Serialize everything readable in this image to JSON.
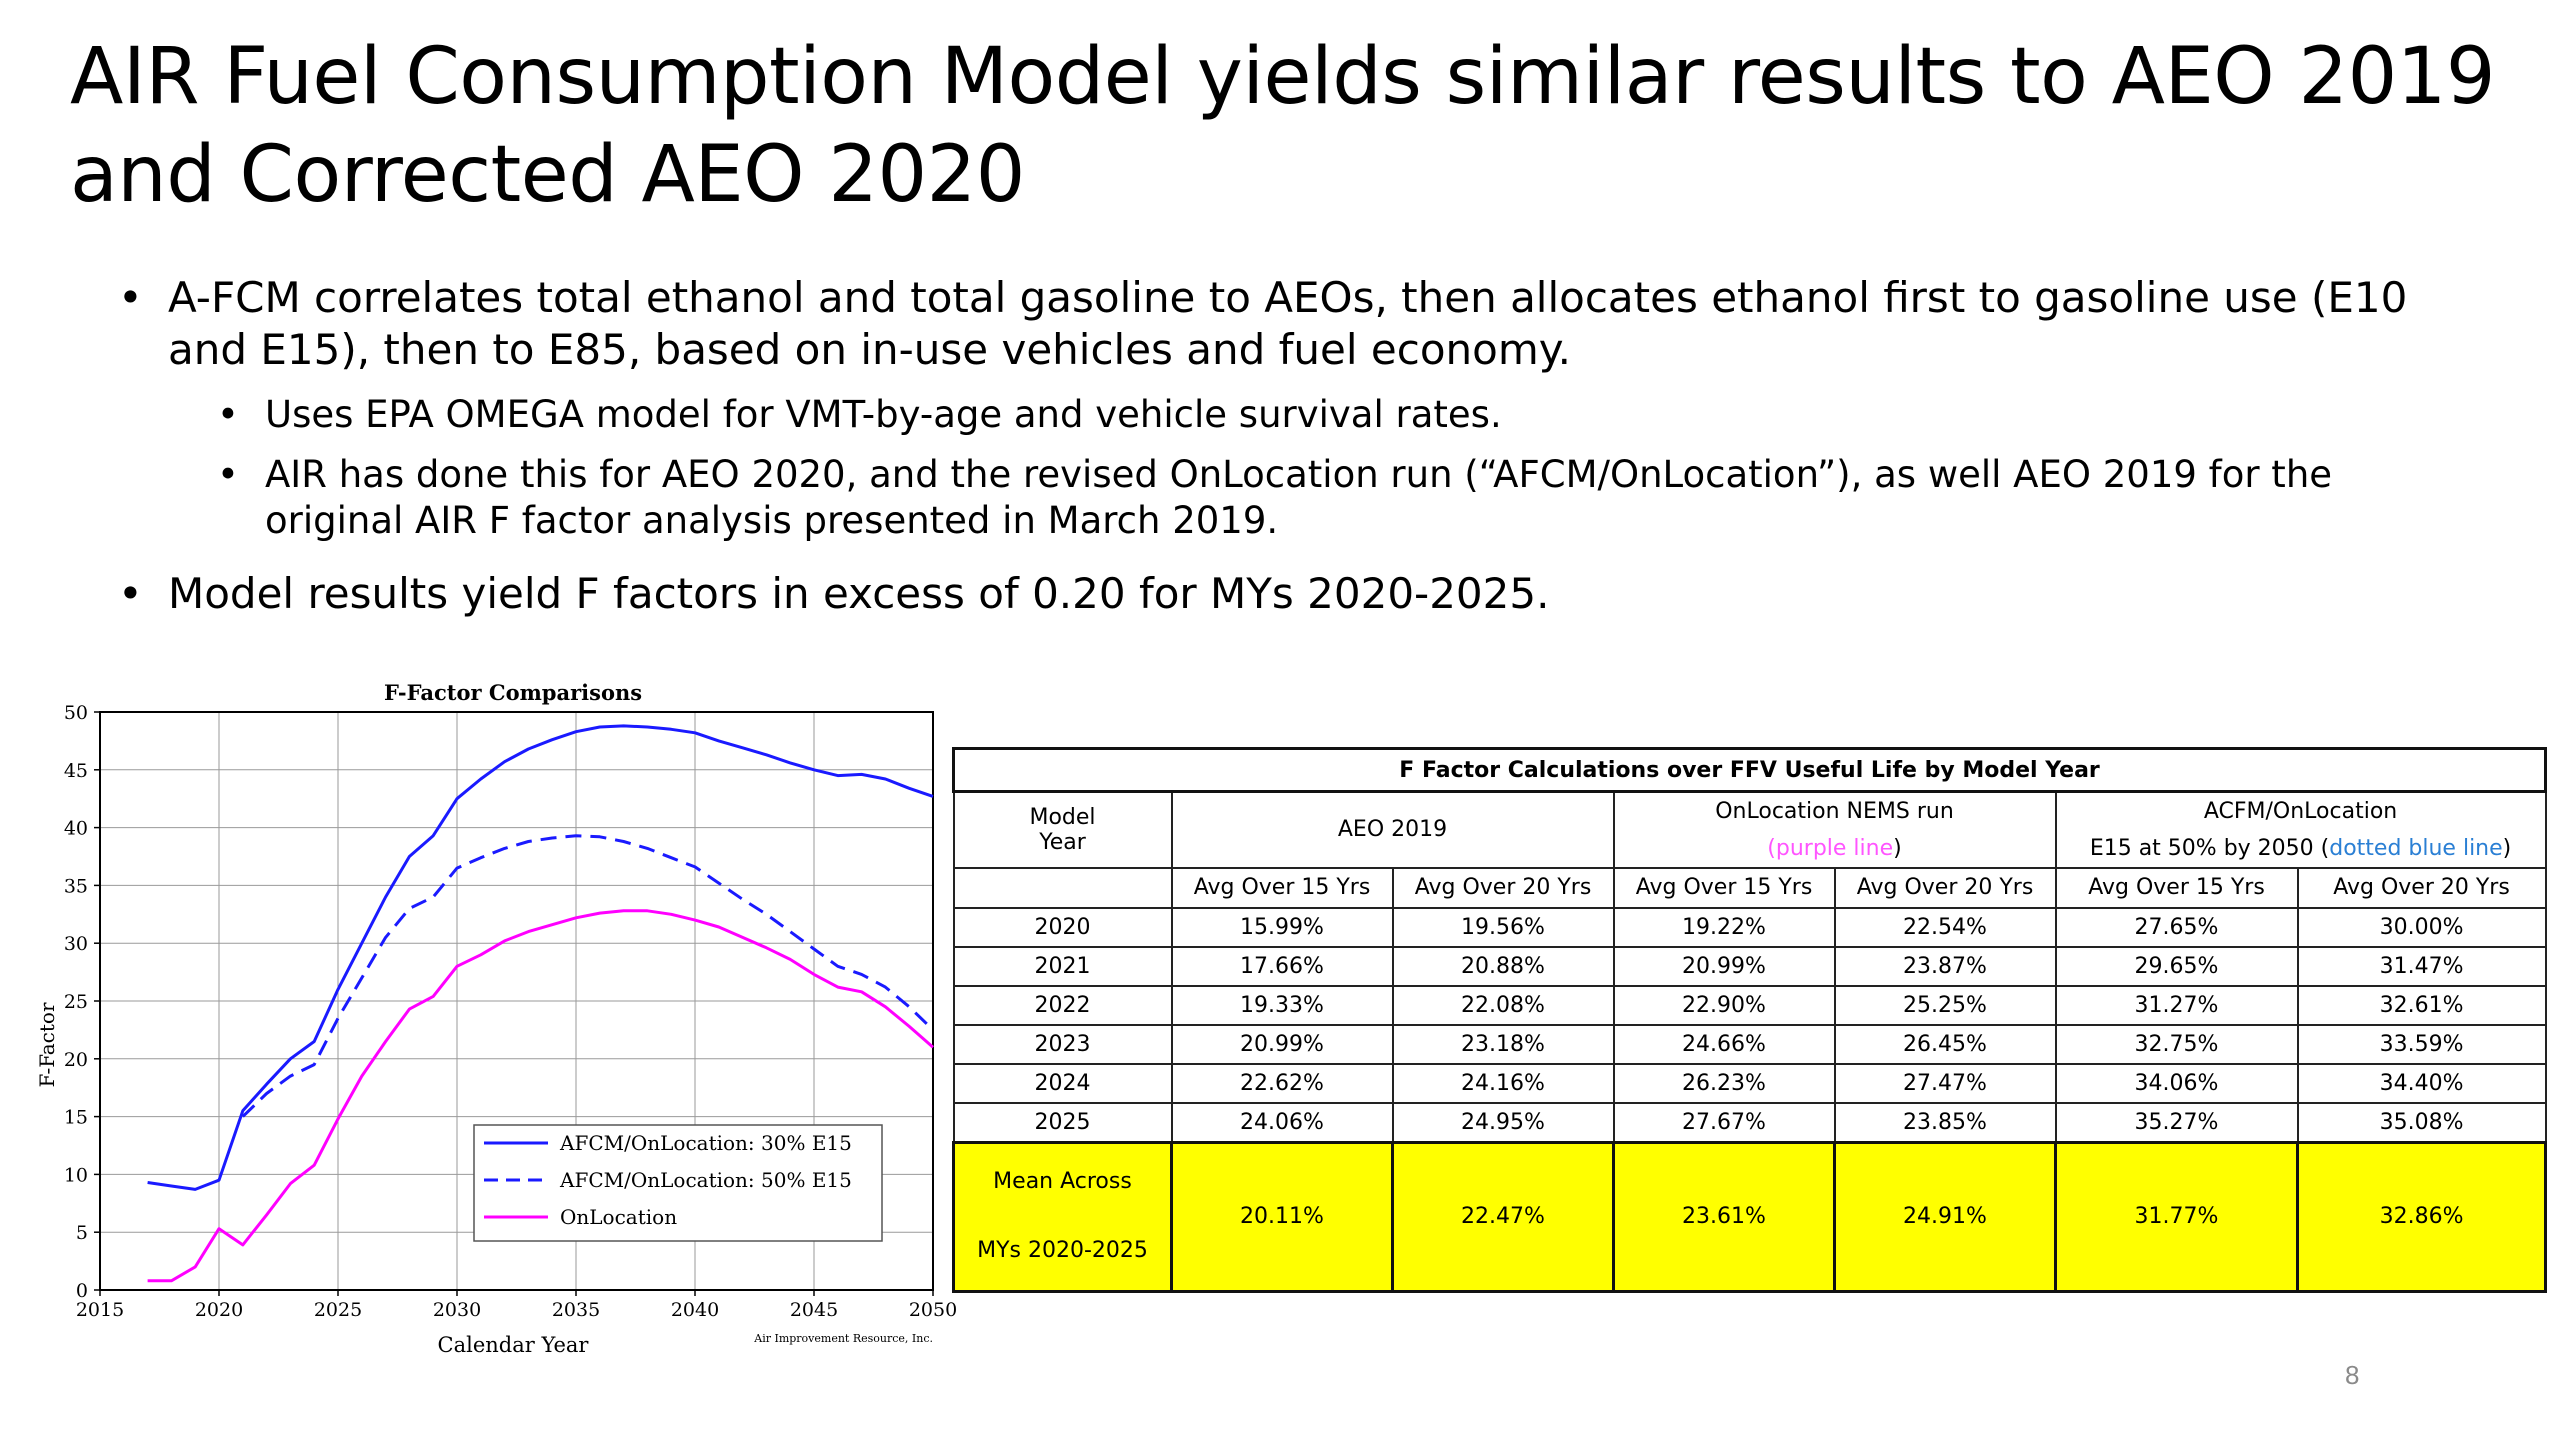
{
  "slide": {
    "title": "AIR Fuel Consumption Model yields similar results to AEO 2019 and Corrected AEO 2020",
    "page_number": "8"
  },
  "bullets": [
    {
      "level": 1,
      "text": "A-FCM correlates total ethanol and total gasoline to AEOs, then allocates ethanol first to gasoline use (E10 and E15), then to E85, based on in-use vehicles and fuel economy."
    },
    {
      "level": 2,
      "text": "Uses EPA OMEGA model for VMT-by-age and vehicle survival rates."
    },
    {
      "level": 2,
      "text": "AIR has done this for AEO 2020, and the revised OnLocation run (“AFCM/OnLocation”), as well AEO 2019 for the original AIR F factor analysis presented in March 2019."
    },
    {
      "level": 1,
      "text": "Model results yield F factors in excess of 0.20 for MYs 2020-2025."
    }
  ],
  "chart_data": {
    "type": "line",
    "title": "F-Factor Comparisons",
    "xlabel": "Calendar Year",
    "ylabel": "F-Factor",
    "xlim": [
      2015,
      2050
    ],
    "ylim": [
      0,
      50
    ],
    "x_ticks": [
      2015,
      2020,
      2025,
      2030,
      2035,
      2040,
      2045,
      2050
    ],
    "y_ticks": [
      0,
      5,
      10,
      15,
      20,
      25,
      30,
      35,
      40,
      45,
      50
    ],
    "grid": true,
    "legend_position": "lower-center",
    "credit": "Air Improvement Resource, Inc.",
    "series": [
      {
        "name": "AFCM/OnLocation: 30% E15",
        "style": "solid",
        "color": "#1a1aff",
        "x": [
          2017,
          2018,
          2019,
          2020,
          2021,
          2022,
          2023,
          2024,
          2025,
          2026,
          2027,
          2028,
          2029,
          2030,
          2031,
          2032,
          2033,
          2034,
          2035,
          2036,
          2037,
          2038,
          2039,
          2040,
          2041,
          2042,
          2043,
          2044,
          2045,
          2046,
          2047,
          2048,
          2049,
          2050
        ],
        "y": [
          9.3,
          9.0,
          8.7,
          9.5,
          15.5,
          17.8,
          20.0,
          21.5,
          26.0,
          30.0,
          34.0,
          37.5,
          39.3,
          42.5,
          44.2,
          45.7,
          46.8,
          47.6,
          48.3,
          48.7,
          48.8,
          48.7,
          48.5,
          48.2,
          47.5,
          46.9,
          46.3,
          45.6,
          45.0,
          44.5,
          44.6,
          44.2,
          43.4,
          42.7
        ]
      },
      {
        "name": "AFCM/OnLocation: 50% E15",
        "style": "dashed",
        "color": "#1a1aff",
        "x": [
          2021,
          2022,
          2023,
          2024,
          2025,
          2026,
          2027,
          2028,
          2029,
          2030,
          2031,
          2032,
          2033,
          2034,
          2035,
          2036,
          2037,
          2038,
          2039,
          2040,
          2041,
          2042,
          2043,
          2044,
          2045,
          2046,
          2047,
          2048,
          2049,
          2050
        ],
        "y": [
          15.0,
          17.0,
          18.5,
          19.5,
          23.5,
          27.0,
          30.5,
          33.0,
          34.0,
          36.5,
          37.4,
          38.2,
          38.8,
          39.1,
          39.3,
          39.2,
          38.8,
          38.2,
          37.4,
          36.6,
          35.2,
          33.8,
          32.5,
          31.0,
          29.5,
          28.0,
          27.3,
          26.2,
          24.5,
          22.5
        ]
      },
      {
        "name": "OnLocation",
        "style": "solid",
        "color": "#ff00ff",
        "x": [
          2017,
          2018,
          2019,
          2020,
          2021,
          2022,
          2023,
          2024,
          2025,
          2026,
          2027,
          2028,
          2029,
          2030,
          2031,
          2032,
          2033,
          2034,
          2035,
          2036,
          2037,
          2038,
          2039,
          2040,
          2041,
          2042,
          2043,
          2044,
          2045,
          2046,
          2047,
          2048,
          2049,
          2050
        ],
        "y": [
          0.8,
          0.8,
          2.0,
          5.3,
          3.9,
          6.5,
          9.2,
          10.8,
          14.8,
          18.5,
          21.5,
          24.3,
          25.4,
          28.0,
          29.0,
          30.2,
          31.0,
          31.6,
          32.2,
          32.6,
          32.8,
          32.8,
          32.5,
          32.0,
          31.4,
          30.5,
          29.6,
          28.6,
          27.3,
          26.2,
          25.8,
          24.5,
          22.8,
          21.0
        ]
      }
    ]
  },
  "table": {
    "caption": "F Factor Calculations over FFV Useful Life by Model Year",
    "model_year_label_1": "Model",
    "model_year_label_2": "Year",
    "group_aeo2019": "AEO 2019",
    "group_onloc_1": "OnLocation NEMS run",
    "group_onloc_2_open": "(",
    "group_onloc_2_colored": "purple line",
    "group_onloc_2_close": ")",
    "group_acfm_1": "ACFM/OnLocation",
    "group_acfm_2_plain": "E15 at 50% by 2050 (",
    "group_acfm_2_colored": "dotted blue line",
    "group_acfm_2_close": ")",
    "sub_headers": [
      "Avg Over 15 Yrs",
      "Avg Over 20 Yrs",
      "Avg Over 15 Yrs",
      "Avg Over 20 Yrs",
      "Avg Over 15 Yrs",
      "Avg Over 20 Yrs"
    ],
    "rows": [
      [
        "2020",
        "15.99%",
        "19.56%",
        "19.22%",
        "22.54%",
        "27.65%",
        "30.00%"
      ],
      [
        "2021",
        "17.66%",
        "20.88%",
        "20.99%",
        "23.87%",
        "29.65%",
        "31.47%"
      ],
      [
        "2022",
        "19.33%",
        "22.08%",
        "22.90%",
        "25.25%",
        "31.27%",
        "32.61%"
      ],
      [
        "2023",
        "20.99%",
        "23.18%",
        "24.66%",
        "26.45%",
        "32.75%",
        "33.59%"
      ],
      [
        "2024",
        "22.62%",
        "24.16%",
        "26.23%",
        "27.47%",
        "34.06%",
        "34.40%"
      ],
      [
        "2025",
        "24.06%",
        "24.95%",
        "27.67%",
        "23.85%",
        "35.27%",
        "35.08%"
      ]
    ],
    "mean_label_1": "Mean Across",
    "mean_label_2": "MYs 2020-2025",
    "mean_values": [
      "20.11%",
      "22.47%",
      "23.61%",
      "24.91%",
      "31.77%",
      "32.86%"
    ],
    "colors": {
      "highlight": "#ffff00",
      "purple_text": "#ff55ff",
      "blue_text": "#2a7fd4"
    }
  }
}
